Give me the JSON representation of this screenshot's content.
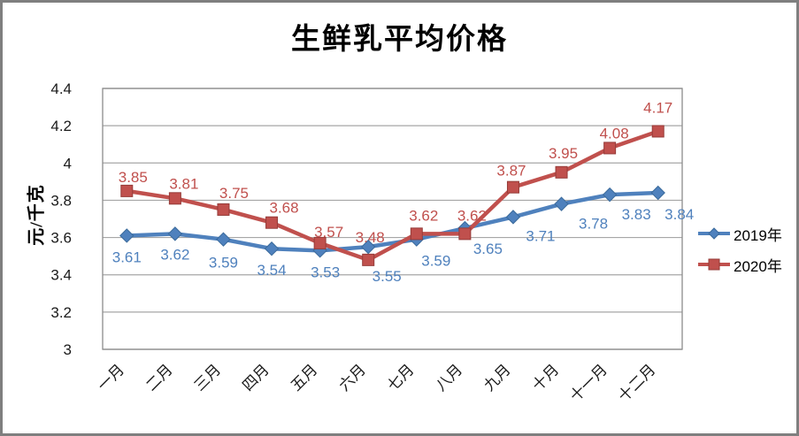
{
  "frame": {
    "background": "#ffffff",
    "border_color": "#7f7f7f"
  },
  "chart_data": {
    "type": "line",
    "title": "生鲜乳平均价格",
    "xlabel": "",
    "ylabel": "元/千克",
    "categories": [
      "一月",
      "二月",
      "三月",
      "四月",
      "五月",
      "六月",
      "七月",
      "八月",
      "九月",
      "十月",
      "十一月",
      "十二月"
    ],
    "series": [
      {
        "name": "2019年",
        "color": "#4F81BD",
        "marker_edge": "#3A6A9B",
        "marker": "diamond",
        "values": [
          3.61,
          3.62,
          3.59,
          3.54,
          3.53,
          3.55,
          3.59,
          3.65,
          3.71,
          3.78,
          3.83,
          3.84
        ]
      },
      {
        "name": "2020年",
        "color": "#C0504D",
        "marker_edge": "#953B38",
        "marker": "square",
        "values": [
          3.85,
          3.81,
          3.75,
          3.68,
          3.57,
          3.48,
          3.62,
          3.62,
          3.87,
          3.95,
          4.08,
          4.17
        ]
      }
    ],
    "ylim": [
      3,
      4.4
    ],
    "yticks": [
      "3",
      "3.2",
      "3.4",
      "3.6",
      "3.8",
      "4",
      "4.2",
      "4.4"
    ],
    "grid": true,
    "gridline_color": "#A6A6A6",
    "axis_color": "#8C8C8C",
    "tick_label_color": "#1a1a1a",
    "legend_position": "right"
  }
}
